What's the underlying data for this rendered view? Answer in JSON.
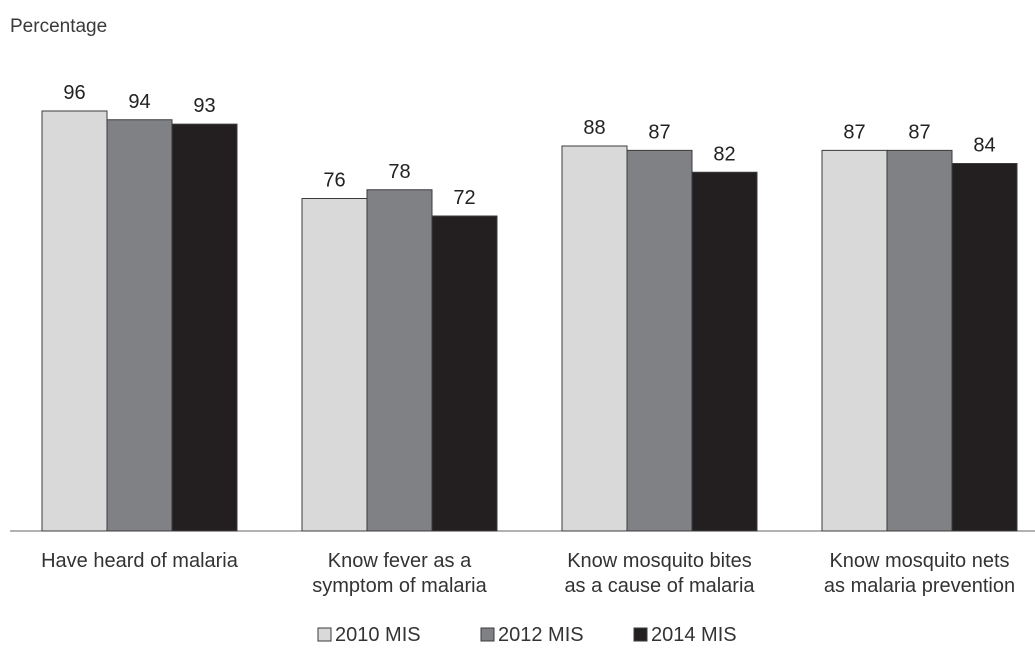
{
  "chart_data": {
    "type": "bar",
    "ylabel": "Percentage",
    "xlabel": "",
    "title": "",
    "ylim": [
      0,
      100
    ],
    "grid": false,
    "legend_position": "bottom",
    "categories": [
      [
        "Have heard of malaria"
      ],
      [
        "Know fever as a",
        "symptom of malaria"
      ],
      [
        "Know mosquito bites",
        "as a cause of malaria"
      ],
      [
        "Know mosquito nets",
        "as malaria prevention"
      ]
    ],
    "series": [
      {
        "name": "2010 MIS",
        "color": "#d9d9d9",
        "values": [
          96,
          76,
          88,
          87
        ]
      },
      {
        "name": "2012 MIS",
        "color": "#808184",
        "values": [
          94,
          78,
          87,
          87
        ]
      },
      {
        "name": "2014 MIS",
        "color": "#231f20",
        "values": [
          93,
          72,
          82,
          84
        ]
      }
    ]
  }
}
